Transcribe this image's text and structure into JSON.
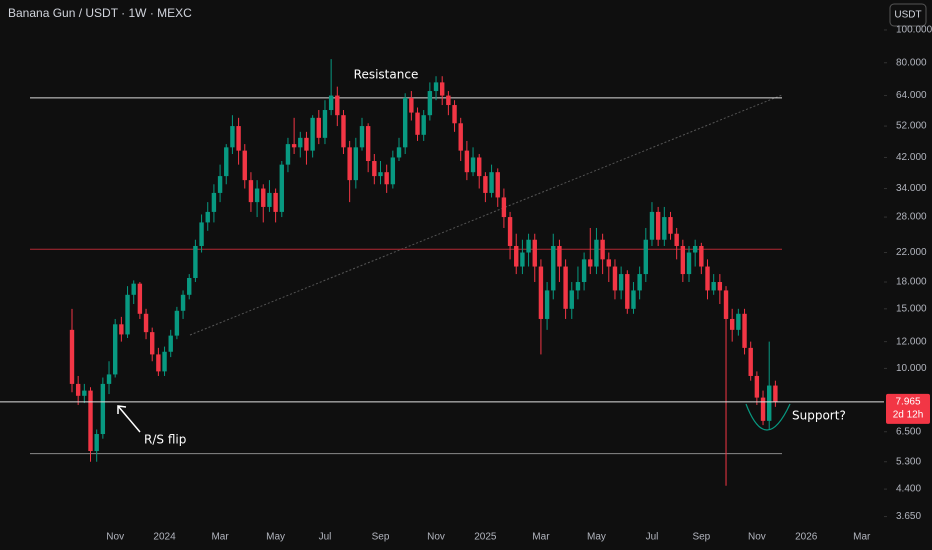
{
  "chart_data": {
    "type": "candlestick",
    "title": "Banana Gun / USDT · 1W · MEXC",
    "currency_button": "USDT",
    "countdown": "2d 12h",
    "log_scale": true,
    "up_color": "#089981",
    "down_color": "#f23645",
    "ylim": [
      3.4,
      122.6
    ],
    "yticks": [
      {
        "value": 100,
        "label": "100.000"
      },
      {
        "value": 80,
        "label": "80.000"
      },
      {
        "value": 64,
        "label": "64.000"
      },
      {
        "value": 52,
        "label": "52.000"
      },
      {
        "value": 42,
        "label": "42.000"
      },
      {
        "value": 34,
        "label": "34.000"
      },
      {
        "value": 28,
        "label": "28.000"
      },
      {
        "value": 22,
        "label": "22.000"
      },
      {
        "value": 18,
        "label": "18.000"
      },
      {
        "value": 15,
        "label": "15.000"
      },
      {
        "value": 12,
        "label": "12.000"
      },
      {
        "value": 10,
        "label": "10.000"
      },
      {
        "value": 6.5,
        "label": "6.500"
      },
      {
        "value": 5.3,
        "label": "5.300"
      },
      {
        "value": 4.4,
        "label": "4.400"
      },
      {
        "value": 3.65,
        "label": "3.650"
      }
    ],
    "levels": [
      {
        "value": 63,
        "color": "#d9d9d9"
      },
      {
        "value": 22.5,
        "color": "#b22833"
      },
      {
        "value": 5.6,
        "color": "#8a8a8a"
      }
    ],
    "annotations": [
      "Resistance",
      "R/S flip",
      "Support?"
    ],
    "categories": [
      null,
      null,
      null,
      null,
      null,
      null,
      null,
      "Nov",
      null,
      null,
      null,
      null,
      null,
      null,
      null,
      "2024",
      null,
      null,
      null,
      null,
      null,
      null,
      null,
      null,
      "Mar",
      null,
      null,
      null,
      null,
      null,
      null,
      null,
      null,
      "May",
      null,
      null,
      null,
      null,
      null,
      null,
      null,
      "Jul",
      null,
      null,
      null,
      null,
      null,
      null,
      null,
      null,
      "Sep",
      null,
      null,
      null,
      null,
      null,
      null,
      null,
      null,
      "Nov",
      null,
      null,
      null,
      null,
      null,
      null,
      null,
      "2025",
      null,
      null,
      null,
      null,
      null,
      null,
      null,
      null,
      "Mar",
      null,
      null,
      null,
      null,
      null,
      null,
      null,
      null,
      "May",
      null,
      null,
      null,
      null,
      null,
      null,
      null,
      null,
      "Jul",
      null,
      null,
      null,
      null,
      null,
      null,
      null,
      "Sep",
      null,
      null,
      null,
      null,
      null,
      null,
      null,
      null,
      "Nov",
      null,
      null,
      null,
      null,
      null,
      null,
      null,
      "2026",
      null,
      null,
      null,
      null,
      null,
      null,
      null,
      null,
      "Mar"
    ],
    "ohlc": [
      [
        13,
        15,
        8.5,
        9.0
      ],
      [
        9.0,
        9.5,
        7.8,
        8.3
      ],
      [
        8.3,
        9,
        7.9,
        8.6
      ],
      [
        8.6,
        8.8,
        5.3,
        5.7
      ],
      [
        5.7,
        6.6,
        5.3,
        6.4
      ],
      [
        6.4,
        9.4,
        6.2,
        9.0
      ],
      [
        9.0,
        10.5,
        8.4,
        9.6
      ],
      [
        9.6,
        14,
        9.4,
        13.5
      ],
      [
        13.5,
        14.2,
        12,
        12.6
      ],
      [
        12.6,
        17.5,
        12.3,
        16.5
      ],
      [
        16.5,
        18.2,
        15.5,
        17.8
      ],
      [
        17.8,
        18,
        14,
        14.5
      ],
      [
        14.5,
        15,
        12.2,
        12.8
      ],
      [
        12.8,
        13.2,
        10.5,
        11.0
      ],
      [
        11.0,
        11.5,
        9.5,
        9.8
      ],
      [
        9.8,
        11.6,
        9.5,
        11.2
      ],
      [
        11.2,
        13,
        10.8,
        12.5
      ],
      [
        12.5,
        15.2,
        12.2,
        14.8
      ],
      [
        14.8,
        17,
        14,
        16.5
      ],
      [
        16.5,
        19,
        16,
        18.5
      ],
      [
        18.5,
        24,
        18,
        23
      ],
      [
        23,
        28.5,
        22,
        27
      ],
      [
        27,
        31,
        25.5,
        29
      ],
      [
        29,
        35,
        27,
        33
      ],
      [
        33,
        40,
        31,
        37
      ],
      [
        37,
        46,
        35,
        45
      ],
      [
        45,
        56,
        43,
        52
      ],
      [
        52,
        55,
        40,
        44
      ],
      [
        44,
        46,
        34,
        36
      ],
      [
        36,
        38,
        29,
        31
      ],
      [
        31,
        36,
        28,
        34
      ],
      [
        34,
        35,
        27,
        30
      ],
      [
        30,
        36,
        29,
        33
      ],
      [
        33,
        34,
        27,
        29
      ],
      [
        29,
        41,
        28,
        40
      ],
      [
        40,
        48,
        38,
        46
      ],
      [
        46,
        55,
        43,
        45
      ],
      [
        45,
        50,
        42,
        48
      ],
      [
        48,
        50,
        40,
        44
      ],
      [
        44,
        56,
        42,
        55
      ],
      [
        55,
        58,
        46,
        48
      ],
      [
        48,
        62,
        46,
        58
      ],
      [
        58,
        82,
        56,
        64
      ],
      [
        64,
        68,
        52,
        56
      ],
      [
        56,
        58,
        43,
        45
      ],
      [
        45,
        47,
        31,
        36
      ],
      [
        36,
        48,
        34,
        45
      ],
      [
        45,
        55,
        44,
        52
      ],
      [
        52,
        53,
        38,
        41
      ],
      [
        41,
        43,
        35,
        37
      ],
      [
        37,
        41,
        35,
        38
      ],
      [
        38,
        40,
        33,
        35
      ],
      [
        35,
        44,
        34,
        42
      ],
      [
        42,
        48,
        41,
        45
      ],
      [
        45,
        65,
        43,
        63
      ],
      [
        63,
        66,
        54,
        57
      ],
      [
        57,
        59,
        47,
        49
      ],
      [
        49,
        58,
        47,
        56
      ],
      [
        56,
        70,
        54,
        66
      ],
      [
        66,
        73,
        62,
        70
      ],
      [
        70,
        73,
        60,
        64
      ],
      [
        64,
        66,
        56,
        60
      ],
      [
        60,
        62,
        50,
        53
      ],
      [
        53,
        55,
        41,
        44
      ],
      [
        44,
        47,
        36,
        38
      ],
      [
        38,
        45,
        37,
        42
      ],
      [
        42,
        43,
        34,
        37
      ],
      [
        37,
        38,
        31,
        33
      ],
      [
        33,
        40,
        32,
        38
      ],
      [
        38,
        39,
        30,
        32
      ],
      [
        32,
        34,
        26,
        28
      ],
      [
        28,
        29,
        21,
        23
      ],
      [
        23,
        25,
        19,
        20
      ],
      [
        20,
        24,
        19,
        22
      ],
      [
        22,
        25,
        20,
        24
      ],
      [
        24,
        25,
        18,
        20
      ],
      [
        20,
        21,
        11,
        14
      ],
      [
        14,
        18,
        13,
        17
      ],
      [
        17,
        25,
        16,
        23
      ],
      [
        23,
        24,
        18,
        20
      ],
      [
        20,
        21,
        14,
        15
      ],
      [
        15,
        18,
        14,
        17
      ],
      [
        17,
        20,
        16,
        18
      ],
      [
        18,
        22,
        17,
        21
      ],
      [
        21,
        26,
        19,
        20
      ],
      [
        20,
        26,
        19,
        24
      ],
      [
        24,
        25,
        19,
        21
      ],
      [
        21,
        22,
        18,
        20
      ],
      [
        20,
        21,
        16,
        17
      ],
      [
        17,
        20,
        16,
        19
      ],
      [
        19,
        19.5,
        14.5,
        15
      ],
      [
        15,
        18,
        14.5,
        17
      ],
      [
        17,
        20,
        16,
        19
      ],
      [
        19,
        26,
        18,
        24
      ],
      [
        24,
        31,
        23,
        29
      ],
      [
        29,
        30,
        23,
        24
      ],
      [
        24,
        30,
        23,
        28
      ],
      [
        28,
        29,
        24,
        25
      ],
      [
        25,
        26,
        21,
        23
      ],
      [
        23,
        24,
        18,
        19
      ],
      [
        19,
        23,
        18,
        22
      ],
      [
        22,
        24,
        20,
        23
      ],
      [
        23,
        23.5,
        19,
        20
      ],
      [
        20,
        21,
        16,
        17
      ],
      [
        17,
        19,
        16.5,
        18
      ],
      [
        18,
        19,
        15.5,
        17
      ],
      [
        17,
        17.5,
        4.5,
        14
      ],
      [
        14,
        15,
        12,
        13
      ],
      [
        13,
        15,
        12.5,
        14.5
      ],
      [
        14.5,
        15,
        11,
        11.5
      ],
      [
        11.5,
        12,
        9.2,
        9.5
      ],
      [
        9.5,
        9.8,
        7.8,
        8.2
      ],
      [
        8.2,
        8.6,
        6.8,
        7.0
      ],
      [
        7.0,
        12,
        6.6,
        8.9
      ],
      [
        8.9,
        9.2,
        7.7,
        7.965
      ],
      null,
      null,
      null,
      null,
      null,
      null,
      null,
      null,
      null,
      null,
      null,
      null,
      null,
      null
    ]
  }
}
